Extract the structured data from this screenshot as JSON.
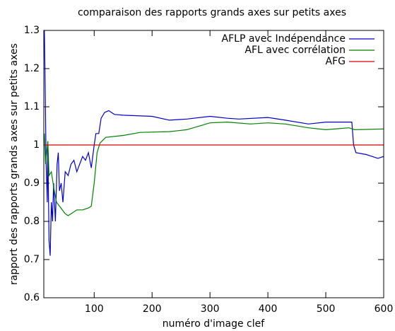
{
  "chart_data": {
    "type": "line",
    "title": "comparaison des rapports grands axes sur petits axes",
    "xlabel": "numéro d'image clef",
    "ylabel": "rapport des rapports grands axes sur petits axes",
    "xlim": [
      13,
      600
    ],
    "xticks": [
      100,
      200,
      300,
      400,
      500,
      600
    ],
    "ylim": [
      0.6,
      1.3
    ],
    "yticks": [
      0.6,
      0.7,
      0.8,
      0.9,
      1,
      1.1,
      1.2,
      1.3
    ],
    "legend": "top-right",
    "series": [
      {
        "name": "AFLP avec Indépendance",
        "color": "#0000cc",
        "x": [
          14,
          15,
          17,
          19,
          20,
          22,
          24,
          26,
          28,
          30,
          33,
          36,
          38,
          40,
          43,
          46,
          50,
          55,
          60,
          65,
          70,
          75,
          80,
          85,
          90,
          95,
          100,
          103,
          108,
          112,
          118,
          125,
          135,
          150,
          200,
          230,
          260,
          300,
          330,
          350,
          400,
          430,
          470,
          500,
          530,
          545,
          548,
          552,
          570,
          580,
          590,
          600
        ],
        "values": [
          1.3,
          1.2,
          0.95,
          0.85,
          1.0,
          0.75,
          0.71,
          0.85,
          0.8,
          0.9,
          0.8,
          0.95,
          0.98,
          0.88,
          0.9,
          0.85,
          0.93,
          0.92,
          0.95,
          0.96,
          0.93,
          0.95,
          0.97,
          0.96,
          0.98,
          0.94,
          1.0,
          1.03,
          1.03,
          1.07,
          1.085,
          1.09,
          1.08,
          1.078,
          1.075,
          1.065,
          1.068,
          1.075,
          1.07,
          1.068,
          1.072,
          1.065,
          1.055,
          1.06,
          1.06,
          1.06,
          1.0,
          0.98,
          0.975,
          0.97,
          0.965,
          0.97
        ]
      },
      {
        "name": "AFL avec corrélation",
        "color": "#008000",
        "x": [
          14,
          16,
          18,
          20,
          22,
          26,
          30,
          35,
          40,
          45,
          50,
          55,
          60,
          70,
          80,
          90,
          95,
          100,
          105,
          110,
          120,
          150,
          180,
          230,
          260,
          300,
          330,
          370,
          400,
          430,
          470,
          500,
          540,
          550,
          600
        ],
        "values": [
          1.03,
          0.95,
          0.98,
          1.01,
          0.92,
          0.93,
          0.89,
          0.85,
          0.84,
          0.83,
          0.82,
          0.815,
          0.82,
          0.83,
          0.83,
          0.835,
          0.84,
          0.9,
          0.98,
          1.005,
          1.02,
          1.025,
          1.033,
          1.035,
          1.04,
          1.058,
          1.06,
          1.055,
          1.058,
          1.055,
          1.045,
          1.04,
          1.045,
          1.04,
          1.042
        ]
      },
      {
        "name": "AFG",
        "color": "#dd0000",
        "x": [
          13,
          600
        ],
        "values": [
          1,
          1
        ]
      }
    ]
  }
}
